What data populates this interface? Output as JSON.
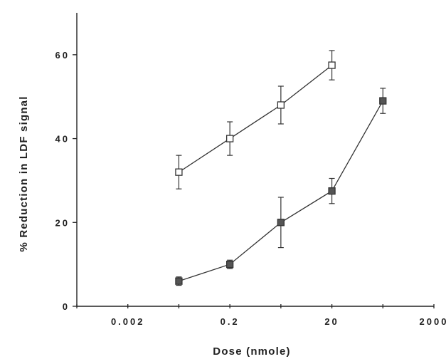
{
  "chart_data": {
    "type": "line",
    "xlabel": "Dose  (nmole)",
    "ylabel": "% Reduction  in  LDF  signal",
    "x_scale": "log",
    "xlim": [
      0.0002,
      2000
    ],
    "ylim": [
      0,
      70
    ],
    "x_ticks": [
      0.0002,
      0.002,
      0.02,
      0.2,
      2,
      20,
      200,
      2000
    ],
    "x_tick_labels": [
      "0.002",
      "0.2",
      "20",
      "2000"
    ],
    "x_tick_label_values": [
      0.002,
      0.2,
      20,
      2000
    ],
    "y_ticks": [
      0,
      20,
      40,
      60
    ],
    "y_tick_labels": [
      "0",
      "20",
      "40",
      "60"
    ],
    "grid": false,
    "series": [
      {
        "marker": "open-square",
        "color": "#ffffff",
        "x": [
          0.02,
          0.2,
          2,
          20
        ],
        "y": [
          32,
          40,
          48,
          57.5
        ],
        "err": [
          4,
          4,
          4.5,
          3.5
        ]
      },
      {
        "marker": "filled-square",
        "color": "#555555",
        "x": [
          0.02,
          0.2,
          2,
          20,
          200
        ],
        "y": [
          6,
          10,
          20,
          27.5,
          49
        ],
        "err": [
          1,
          1,
          6,
          3,
          3
        ]
      }
    ]
  }
}
